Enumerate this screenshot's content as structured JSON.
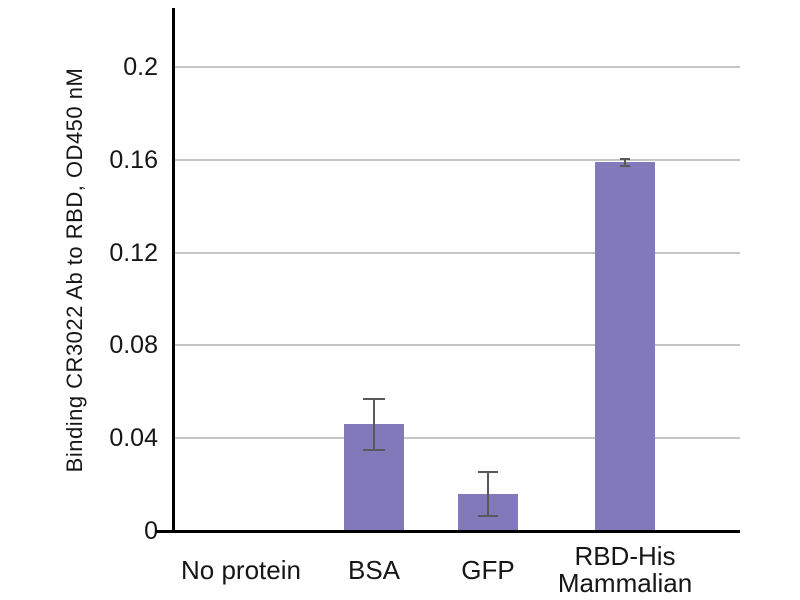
{
  "chart_data": {
    "type": "bar",
    "title": "",
    "ylabel": "Binding CR3022 Ab to RBD, OD450 nM",
    "xlabel": "",
    "categories": [
      [
        "No protein"
      ],
      [
        "BSA"
      ],
      [
        "GFP"
      ],
      [
        "RBD-His",
        "Mammalian"
      ]
    ],
    "values": [
      0,
      0.046,
      0.016,
      0.159
    ],
    "errors": [
      0,
      0.011,
      0.0095,
      0.0015
    ],
    "ylim": [
      0,
      0.22
    ],
    "yticks": [
      0,
      0.04,
      0.08,
      0.12,
      0.16,
      0.2
    ],
    "ytick_labels": [
      "0",
      "0.04",
      "0.08",
      "0.12",
      "0.16",
      "0.2"
    ],
    "grid": true,
    "legend": null,
    "colors": {
      "bar": "#8179BA",
      "gridline": "#C5C5C5",
      "axis": "#000000",
      "error_bar": "#58595B",
      "text": "#161616",
      "background": "#FFFFFF"
    }
  }
}
